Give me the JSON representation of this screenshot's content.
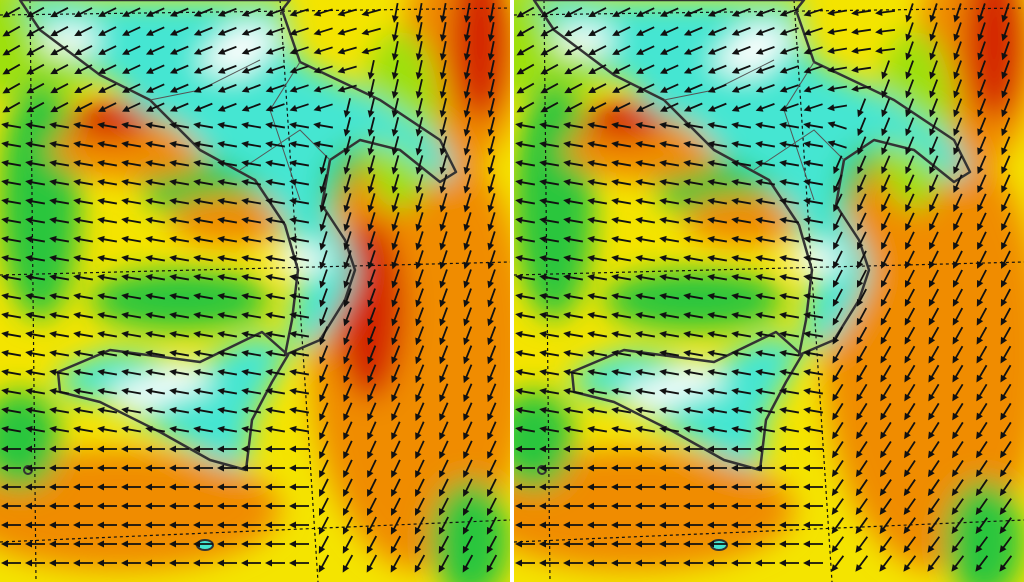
{
  "palette": {
    "calm": "#ffffff",
    "light": "#44e6d2",
    "moderate": "#2cc63c",
    "fresh": "#9ee010",
    "strong": "#f4e400",
    "gale": "#f08c00",
    "severe": "#d42800",
    "coastline": "#333333",
    "arrow": "#111111"
  },
  "panels": [
    {
      "name": "left-map",
      "southeast_intensity": "severe"
    },
    {
      "name": "right-map",
      "southeast_intensity": "gale"
    }
  ]
}
